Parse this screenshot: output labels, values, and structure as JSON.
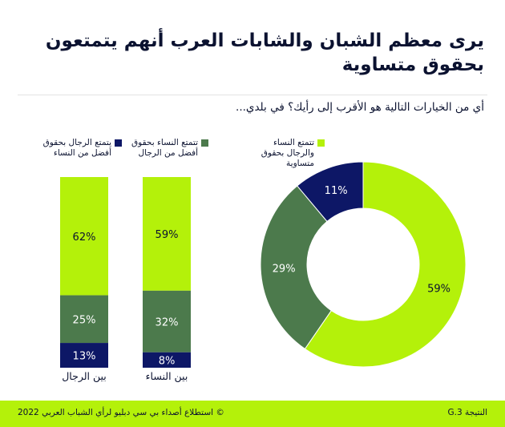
{
  "title": "يرى معظم الشبان والشابات العرب أنهم يتمتعون بحقوق متساوية",
  "question": "أي من الخيارات التالية هو الأقرب إلى رأيك؟ في بلدي...",
  "colors": {
    "equal": "#b4f10a",
    "women": "#4c7a4c",
    "men": "#0d1766",
    "label_dark": "#0b1230",
    "label_light": "#ffffff"
  },
  "legend": [
    {
      "key": "equal",
      "text": "تتمتع النساء والرجال بحقوق متساوية"
    },
    {
      "key": "women",
      "text": "تتمتع النساء بحقوق أفضل من الرجال"
    },
    {
      "key": "men",
      "text": "يتمتع الرجال بحقوق أفضل من النساء"
    }
  ],
  "chart_data": [
    {
      "type": "pie",
      "donut": true,
      "categories": [
        "تتمتع النساء والرجال بحقوق متساوية",
        "تتمتع النساء بحقوق أفضل من الرجال",
        "يتمتع الرجال بحقوق أفضل من النساء"
      ],
      "values": [
        59,
        29,
        11
      ],
      "labels": [
        "59%",
        "29%",
        "11%"
      ],
      "colors": [
        "#b4f10a",
        "#4c7a4c",
        "#0d1766"
      ]
    },
    {
      "type": "bar",
      "stacked": true,
      "orientation": "vertical",
      "categories": [
        "بين النساء",
        "بين الرجال"
      ],
      "series": [
        {
          "name": "تتمتع النساء والرجال بحقوق متساوية",
          "values": [
            59,
            62
          ],
          "labels": [
            "59%",
            "62%"
          ],
          "color": "#b4f10a"
        },
        {
          "name": "تتمتع النساء بحقوق أفضل من الرجال",
          "values": [
            32,
            25
          ],
          "labels": [
            "32%",
            "25%"
          ],
          "color": "#4c7a4c"
        },
        {
          "name": "يتمتع الرجال بحقوق أفضل من النساء",
          "values": [
            8,
            13
          ],
          "labels": [
            "8%",
            "13%"
          ],
          "color": "#0d1766"
        }
      ]
    }
  ],
  "footer": {
    "source": "© استطلاع أصداء بي سي دبليو لرأي الشباب العربي 2022",
    "finding": "النتيجة 3.G"
  }
}
